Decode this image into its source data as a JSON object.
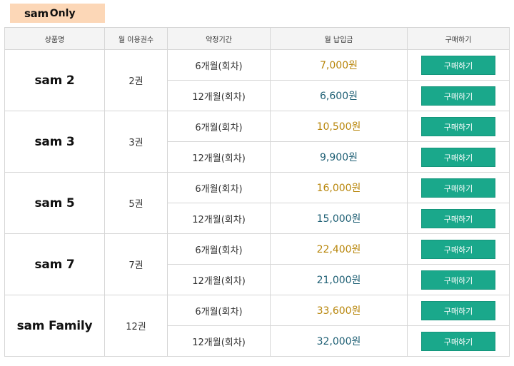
{
  "badge": {
    "brand": "sam",
    "suffix": "Only"
  },
  "headers": {
    "product": "상품명",
    "books": "월 이용권수",
    "period": "약정기간",
    "payment": "월 납입금",
    "buy": "구매하기"
  },
  "rows": [
    {
      "product": "sam 2",
      "books": "2권",
      "plans": [
        {
          "period": "6개월(회차)",
          "price": "7,000원",
          "buy": "구매하기"
        },
        {
          "period": "12개월(회차)",
          "price": "6,600원",
          "buy": "구매하기"
        }
      ]
    },
    {
      "product": "sam 3",
      "books": "3권",
      "plans": [
        {
          "period": "6개월(회차)",
          "price": "10,500원",
          "buy": "구매하기"
        },
        {
          "period": "12개월(회차)",
          "price": "9,900원",
          "buy": "구매하기"
        }
      ]
    },
    {
      "product": "sam 5",
      "books": "5권",
      "plans": [
        {
          "period": "6개월(회차)",
          "price": "16,000원",
          "buy": "구매하기"
        },
        {
          "period": "12개월(회차)",
          "price": "15,000원",
          "buy": "구매하기"
        }
      ]
    },
    {
      "product": "sam 7",
      "books": "7권",
      "plans": [
        {
          "period": "6개월(회차)",
          "price": "22,400원",
          "buy": "구매하기"
        },
        {
          "period": "12개월(회차)",
          "price": "21,000원",
          "buy": "구매하기"
        }
      ]
    },
    {
      "product": "sam Family",
      "books": "12권",
      "plans": [
        {
          "period": "6개월(회차)",
          "price": "33,600원",
          "buy": "구매하기"
        },
        {
          "period": "12개월(회차)",
          "price": "32,000원",
          "buy": "구매하기"
        }
      ]
    }
  ],
  "colors": {
    "badge_bg": "#fcd7b7",
    "price_6_month": "#b8860b",
    "price_12_month": "#1e5f74",
    "buy_button": "#1aa88b"
  }
}
